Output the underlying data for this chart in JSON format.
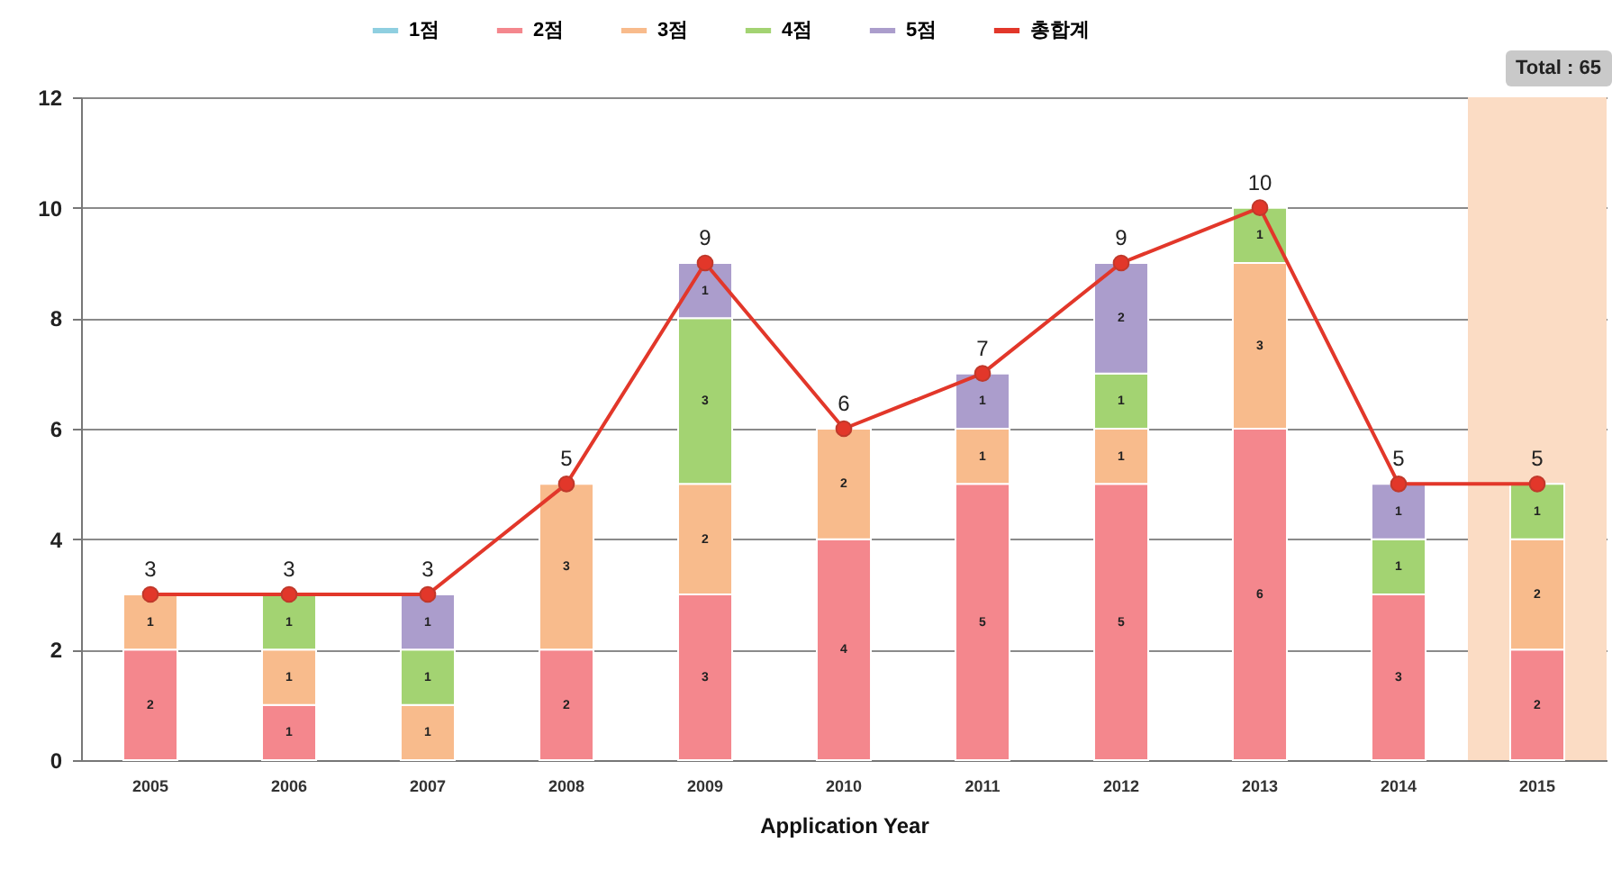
{
  "chart_data": {
    "type": "bar",
    "stacked": true,
    "xlabel": "Application Year",
    "categories": [
      "2005",
      "2006",
      "2007",
      "2008",
      "2009",
      "2010",
      "2011",
      "2012",
      "2013",
      "2014",
      "2015"
    ],
    "series": [
      {
        "name": "1점",
        "color": "#8fcfe0",
        "values": [
          null,
          null,
          null,
          null,
          null,
          null,
          null,
          null,
          null,
          null,
          null
        ]
      },
      {
        "name": "2점",
        "color": "#f4878d",
        "values": [
          2,
          1,
          null,
          2,
          3,
          4,
          5,
          5,
          6,
          3,
          2
        ]
      },
      {
        "name": "3점",
        "color": "#f8bb8c",
        "values": [
          1,
          1,
          1,
          3,
          2,
          2,
          1,
          1,
          3,
          null,
          2
        ]
      },
      {
        "name": "4점",
        "color": "#a3d372",
        "values": [
          null,
          1,
          1,
          null,
          3,
          null,
          null,
          1,
          1,
          1,
          1
        ]
      },
      {
        "name": "5점",
        "color": "#ab9dcc",
        "values": [
          null,
          null,
          1,
          null,
          1,
          null,
          1,
          2,
          null,
          1,
          null
        ]
      },
      {
        "name": "총합계",
        "type": "line",
        "color": "#e2372a",
        "marker": "circle",
        "values": [
          3,
          3,
          3,
          5,
          9,
          6,
          7,
          9,
          10,
          5,
          5
        ]
      }
    ],
    "ylim": [
      0,
      12
    ],
    "yticks": [
      0,
      2,
      4,
      6,
      8,
      10,
      12
    ],
    "grid": "y",
    "legend": "top",
    "data_labels": true,
    "bands": [
      {
        "axis": "x",
        "from": "2015",
        "to": "2015",
        "color": "#fbdcc4"
      }
    ],
    "annotations": [
      "Total : 65"
    ]
  }
}
